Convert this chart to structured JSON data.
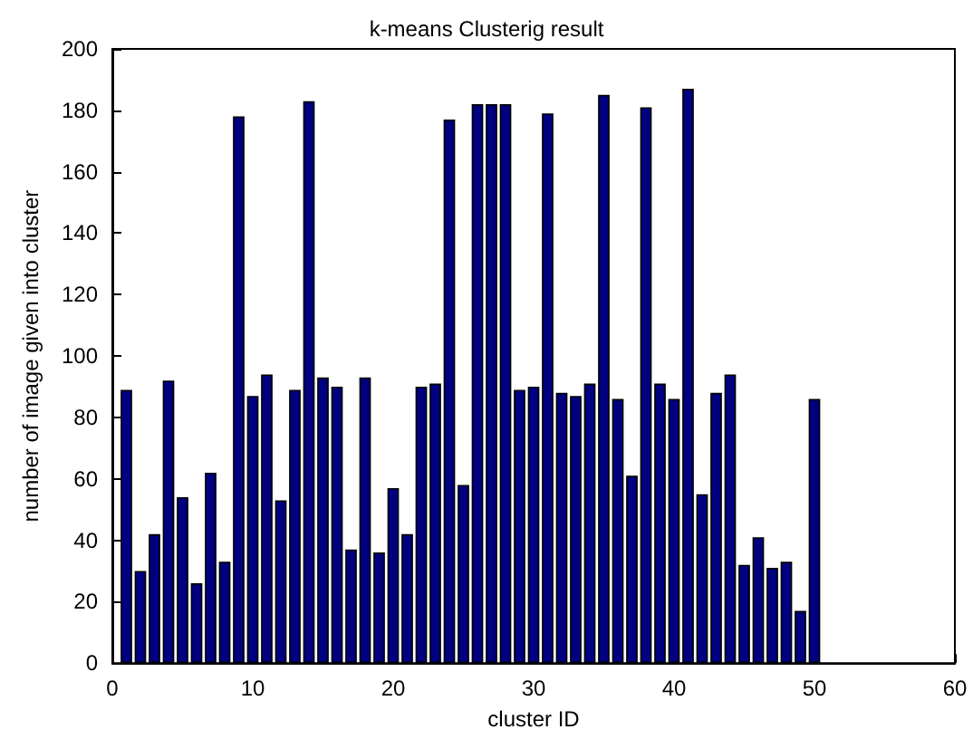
{
  "chart_data": {
    "type": "bar",
    "title": "k-means Clusterig result",
    "xlabel": "cluster ID",
    "ylabel": "number of image given into cluster",
    "x": [
      1,
      2,
      3,
      4,
      5,
      6,
      7,
      8,
      9,
      10,
      11,
      12,
      13,
      14,
      15,
      16,
      17,
      18,
      19,
      20,
      21,
      22,
      23,
      24,
      25,
      26,
      27,
      28,
      29,
      30,
      31,
      32,
      33,
      34,
      35,
      36,
      37,
      38,
      39,
      40,
      41,
      42,
      43,
      44,
      45,
      46,
      47,
      48,
      49,
      50
    ],
    "values": [
      89,
      30,
      42,
      92,
      54,
      26,
      62,
      33,
      178,
      87,
      94,
      53,
      89,
      183,
      93,
      90,
      37,
      93,
      36,
      57,
      42,
      90,
      91,
      177,
      58,
      182,
      182,
      182,
      89,
      90,
      179,
      88,
      87,
      91,
      185,
      86,
      61,
      181,
      91,
      86,
      187,
      55,
      88,
      94,
      32,
      41,
      31,
      33,
      17,
      86
    ],
    "color": "#000080",
    "xlim": [
      0,
      60
    ],
    "xticks": [
      0,
      10,
      20,
      30,
      40,
      50,
      60
    ],
    "ylim": [
      0,
      200
    ],
    "yticks": [
      0,
      20,
      40,
      60,
      80,
      100,
      120,
      140,
      160,
      180,
      200
    ],
    "grid": false
  }
}
